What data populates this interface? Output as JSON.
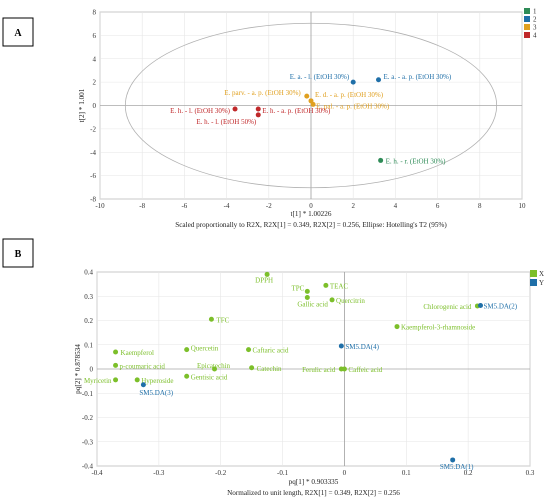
{
  "colors": {
    "g1": "#2e8b57",
    "g2": "#1f6fa8",
    "g3": "#e0a020",
    "g4": "#c0282a",
    "xvar": "#7cbf2a",
    "yvar": "#1f6fa8"
  },
  "chart_data": [
    {
      "type": "scatter",
      "panel": "A",
      "xlabel": "t[1] * 1.00226",
      "ylabel": "t[2] * 1.001",
      "caption": "Scaled proportionally to R2X, R2X[1] = 0.349, R2X[2] = 0.256,  Ellipse: Hotelling's T2 (95%)",
      "xlim": [
        -10,
        10
      ],
      "ylim": [
        -8,
        8
      ],
      "xticks": [
        "-10",
        "-8",
        "-6",
        "-4",
        "-2",
        "0",
        "2",
        "4",
        "6",
        "8",
        "10"
      ],
      "yticks": [
        "8",
        "6",
        "4",
        "2",
        "0",
        "-2",
        "-4",
        "-6",
        "-8"
      ],
      "grid": true,
      "ellipse": "Hotelling's T2 (95%)",
      "legend": {
        "placement": "right",
        "entries": [
          "1",
          "2",
          "3",
          "4"
        ]
      },
      "points": [
        {
          "label": "E. a. - a. p. (EtOH 30%)",
          "x": 3.2,
          "y": 2.2,
          "group": "2"
        },
        {
          "label": "E. a. - l. (EtOH 30%)",
          "x": 2.0,
          "y": 2.0,
          "group": "2"
        },
        {
          "label": "E. parv. - a. p. (EtOH 30%)",
          "x": -0.2,
          "y": 0.8,
          "group": "3"
        },
        {
          "label": "E. d. - a. p. (EtOH 30%)",
          "x": 0.0,
          "y": 0.4,
          "group": "3"
        },
        {
          "label": "E. pal. - a. p. (EtOH 30%)",
          "x": 0.1,
          "y": 0.1,
          "group": "3"
        },
        {
          "label": "E. h. - l. (EtOH 30%)",
          "x": -3.6,
          "y": -0.3,
          "group": "4"
        },
        {
          "label": "E. h. - a. p. (EtOH 30%)",
          "x": -2.5,
          "y": -0.3,
          "group": "4"
        },
        {
          "label": "E. h. - l. (EtOH 50%)",
          "x": -2.5,
          "y": -0.8,
          "group": "4"
        },
        {
          "label": "E. h. - r. (EtOH 30%)",
          "x": 3.3,
          "y": -4.7,
          "group": "1"
        }
      ]
    },
    {
      "type": "scatter",
      "panel": "B",
      "xlabel": "pq[1] * 0.903335",
      "ylabel": "pq[2] * 0.878534",
      "caption": "Normalized to unit length, R2X[1] = 0.349, R2X[2] = 0.256",
      "xlim": [
        -0.4,
        0.3
      ],
      "ylim": [
        -0.4,
        0.4
      ],
      "xticks": [
        "-0.4",
        "-0.3",
        "-0.2",
        "-0.1",
        "0",
        "0.1",
        "0.2",
        "0.3"
      ],
      "yticks": [
        "0.4",
        "0.3",
        "0.2",
        "0.1",
        "0",
        "-0.1",
        "-0.2",
        "-0.3",
        "-0.4"
      ],
      "grid": true,
      "legend": {
        "placement": "top-right",
        "entries": [
          "X",
          "Y"
        ]
      },
      "points": [
        {
          "label": "DPPH",
          "x": -0.125,
          "y": 0.39,
          "group": "X"
        },
        {
          "label": "TEAC",
          "x": -0.03,
          "y": 0.345,
          "group": "X"
        },
        {
          "label": "TPC",
          "x": -0.06,
          "y": 0.32,
          "group": "X"
        },
        {
          "label": "Quercitrin",
          "x": -0.02,
          "y": 0.285,
          "group": "X"
        },
        {
          "label": "Gallic acid",
          "x": -0.06,
          "y": 0.295,
          "group": "X"
        },
        {
          "label": "Chlorogenic acid",
          "x": 0.215,
          "y": 0.26,
          "group": "X"
        },
        {
          "label": "SM5.DA(2)",
          "x": 0.22,
          "y": 0.262,
          "group": "Y"
        },
        {
          "label": "Kaempferol-3-rhamnoside",
          "x": 0.085,
          "y": 0.175,
          "group": "X"
        },
        {
          "label": "TFC",
          "x": -0.215,
          "y": 0.205,
          "group": "X"
        },
        {
          "label": "SM5.DA(4)",
          "x": -0.005,
          "y": 0.095,
          "group": "Y"
        },
        {
          "label": "Kaempferol",
          "x": -0.37,
          "y": 0.07,
          "group": "X"
        },
        {
          "label": "Quercetin",
          "x": -0.255,
          "y": 0.08,
          "group": "X"
        },
        {
          "label": "Caftaric acid",
          "x": -0.155,
          "y": 0.08,
          "group": "X"
        },
        {
          "label": "p-coumaric acid",
          "x": -0.37,
          "y": 0.015,
          "group": "X"
        },
        {
          "label": "Epicatechin",
          "x": -0.21,
          "y": 0.0,
          "group": "X"
        },
        {
          "label": "Catechin",
          "x": -0.15,
          "y": 0.005,
          "group": "X"
        },
        {
          "label": "Ferulic acid",
          "x": -0.005,
          "y": 0.0,
          "group": "X"
        },
        {
          "label": "Caffeic acid",
          "x": 0.0,
          "y": 0.0,
          "group": "X"
        },
        {
          "label": "Gentisic acid",
          "x": -0.255,
          "y": -0.03,
          "group": "X"
        },
        {
          "label": "Myricetin",
          "x": -0.37,
          "y": -0.045,
          "group": "X"
        },
        {
          "label": "Hyperoside",
          "x": -0.335,
          "y": -0.045,
          "group": "X"
        },
        {
          "label": "SM5.DA(3)",
          "x": -0.325,
          "y": -0.065,
          "group": "Y"
        },
        {
          "label": "SM5.DA(1)",
          "x": 0.175,
          "y": -0.375,
          "group": "Y"
        }
      ]
    }
  ]
}
